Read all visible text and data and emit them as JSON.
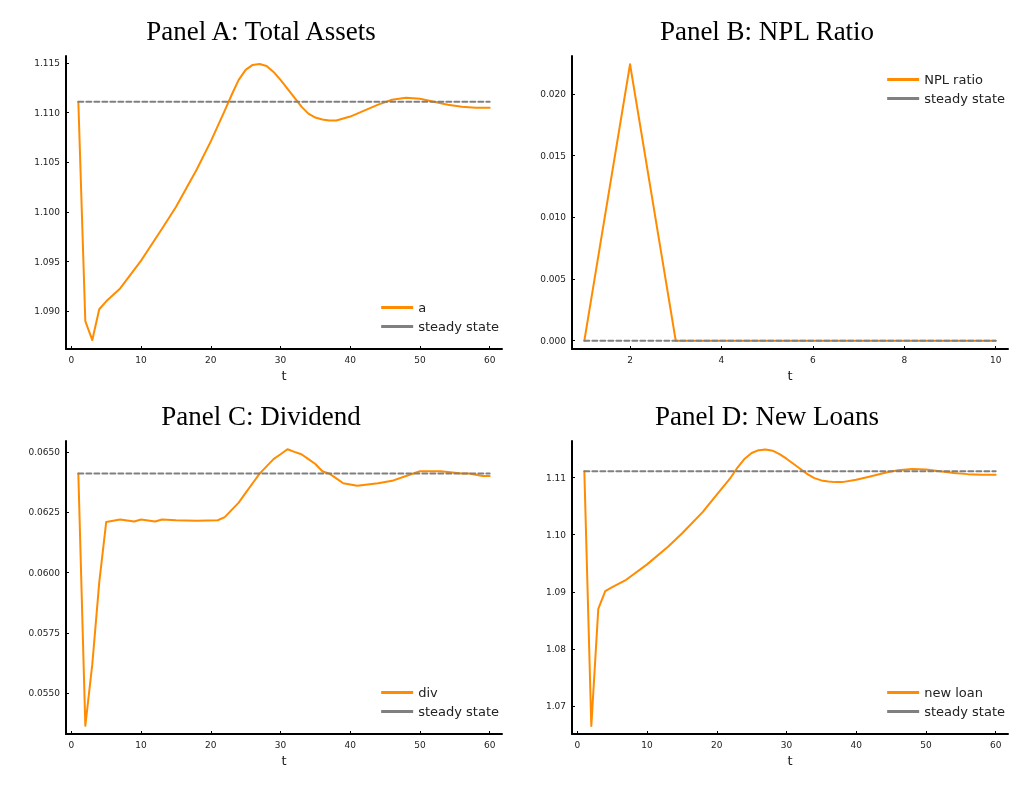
{
  "chart_data": [
    {
      "type": "line",
      "title": "Panel A: Total Assets",
      "xlabel": "t",
      "xlim": [
        -0.77,
        61.77
      ],
      "xticks": [
        0,
        10,
        20,
        30,
        40,
        50,
        60
      ],
      "ylim": [
        1.0862,
        1.1157
      ],
      "yticks": [
        {
          "value": 1.09,
          "label": "1.090"
        },
        1.095,
        {
          "value": 1.1,
          "label": "1.100"
        },
        1.105,
        {
          "value": 1.11,
          "label": "1.110"
        },
        1.115
      ],
      "grid": false,
      "legend": "bottom right",
      "marker": "none",
      "series": [
        {
          "name": "a",
          "color": "#ff8c00",
          "line_style": "solid",
          "x": [
            1,
            2,
            3,
            4,
            5,
            7,
            10,
            13,
            15,
            18,
            20,
            22,
            23,
            24,
            25,
            26,
            27,
            28,
            29,
            30,
            32,
            33,
            34,
            35,
            36,
            37,
            38,
            40,
            42,
            44,
            46,
            48,
            50,
            52,
            54,
            56,
            58,
            60
          ],
          "values": [
            1.1111,
            1.089,
            1.0871,
            1.0902,
            1.091,
            1.0923,
            1.0951,
            1.0983,
            1.1005,
            1.1043,
            1.1071,
            1.1102,
            1.1118,
            1.1133,
            1.1143,
            1.1148,
            1.1149,
            1.1147,
            1.1141,
            1.1133,
            1.1115,
            1.1106,
            1.1099,
            1.1095,
            1.1093,
            1.1092,
            1.1092,
            1.1096,
            1.1102,
            1.1108,
            1.1113,
            1.1115,
            1.1114,
            1.1111,
            1.1108,
            1.1106,
            1.1105,
            1.1105
          ]
        },
        {
          "name": "steady state",
          "color": "#808080",
          "line_style": "dashed",
          "x": [
            1,
            60
          ],
          "values": [
            1.1111,
            1.1111
          ]
        }
      ]
    },
    {
      "type": "line",
      "title": "Panel B: NPL Ratio",
      "xlabel": "t",
      "xlim": [
        0.73,
        10.27
      ],
      "xticks": [
        2,
        4,
        6,
        8,
        10
      ],
      "ylim": [
        -0.00067,
        0.02307
      ],
      "yticks": [
        {
          "value": 0,
          "label": "0.000"
        },
        0.005,
        {
          "value": 0.01,
          "label": "0.010"
        },
        0.015,
        {
          "value": 0.02,
          "label": "0.020"
        }
      ],
      "grid": false,
      "legend": "top right",
      "marker": "none",
      "series": [
        {
          "name": "NPL ratio",
          "color": "#ff8c00",
          "line_style": "solid",
          "x": [
            1,
            2,
            3,
            4,
            5,
            6,
            7,
            8,
            9,
            10
          ],
          "values": [
            0,
            0.0224,
            0,
            0,
            0,
            0,
            0,
            0,
            0,
            0
          ]
        },
        {
          "name": "steady state",
          "color": "#808080",
          "line_style": "dashed",
          "x": [
            1,
            10
          ],
          "values": [
            0,
            0
          ]
        }
      ]
    },
    {
      "type": "line",
      "title": "Panel C: Dividend",
      "xlabel": "t",
      "xlim": [
        -0.77,
        61.77
      ],
      "xticks": [
        0,
        10,
        20,
        30,
        40,
        50,
        60
      ],
      "ylim": [
        0.05332,
        0.06545
      ],
      "yticks": [
        {
          "value": 0.055,
          "label": "0.0550"
        },
        0.0575,
        {
          "value": 0.06,
          "label": "0.0600"
        },
        0.0625,
        {
          "value": 0.065,
          "label": "0.0650"
        }
      ],
      "grid": false,
      "legend": "bottom right",
      "marker": "none",
      "series": [
        {
          "name": "div",
          "color": "#ff8c00",
          "line_style": "solid",
          "x": [
            1,
            2,
            3,
            4,
            5,
            7,
            9,
            10,
            12,
            13,
            15,
            18,
            21,
            22,
            23,
            24,
            25,
            26,
            27,
            28,
            29,
            30,
            31,
            32,
            33,
            34,
            35,
            36,
            37,
            38,
            39,
            41,
            44,
            46,
            48,
            50,
            53,
            56,
            57,
            59,
            60
          ],
          "values": [
            0.0641,
            0.05366,
            0.0562,
            0.0596,
            0.0621,
            0.0622,
            0.06212,
            0.0622,
            0.06212,
            0.0622,
            0.06217,
            0.06215,
            0.06217,
            0.0623,
            0.0626,
            0.0629,
            0.0633,
            0.0637,
            0.0641,
            0.0644,
            0.0647,
            0.0649,
            0.06511,
            0.065,
            0.0649,
            0.0647,
            0.0645,
            0.0642,
            0.0641,
            0.0639,
            0.0637,
            0.0636,
            0.0637,
            0.0638,
            0.064,
            0.0642,
            0.0642,
            0.0641,
            0.0641,
            0.064,
            0.064
          ]
        },
        {
          "name": "steady state",
          "color": "#808080",
          "line_style": "dashed",
          "x": [
            1,
            60
          ],
          "values": [
            0.0641,
            0.0641
          ]
        }
      ]
    },
    {
      "type": "line",
      "title": "Panel D: New Loans",
      "xlabel": "t",
      "xlim": [
        -0.77,
        61.77
      ],
      "xticks": [
        0,
        10,
        20,
        30,
        40,
        50,
        60
      ],
      "ylim": [
        1.0651,
        1.1164
      ],
      "yticks": [
        1.07,
        1.08,
        1.09,
        {
          "value": 1.1,
          "label": "1.10"
        },
        1.11
      ],
      "grid": false,
      "legend": "bottom right",
      "marker": "none",
      "series": [
        {
          "name": "new loan",
          "color": "#ff8c00",
          "line_style": "solid",
          "x": [
            1,
            2,
            3,
            4,
            5,
            7,
            10,
            13,
            15,
            18,
            20,
            22,
            23,
            24,
            25,
            26,
            27,
            28,
            29,
            30,
            32,
            33,
            34,
            35,
            36,
            37,
            38,
            40,
            42,
            44,
            46,
            48,
            50,
            52,
            54,
            56,
            58,
            60
          ],
          "values": [
            1.1111,
            1.0665,
            1.087,
            1.0901,
            1.0908,
            1.0921,
            1.0948,
            1.0979,
            1.1002,
            1.104,
            1.107,
            1.11,
            1.1118,
            1.1133,
            1.1143,
            1.1148,
            1.1149,
            1.1147,
            1.1141,
            1.1133,
            1.1115,
            1.1106,
            1.1099,
            1.1095,
            1.1093,
            1.1092,
            1.1092,
            1.1096,
            1.1102,
            1.1108,
            1.1113,
            1.1115,
            1.1114,
            1.1111,
            1.1108,
            1.1106,
            1.1105,
            1.1105
          ]
        },
        {
          "name": "steady state",
          "color": "#808080",
          "line_style": "dashed",
          "x": [
            1,
            60
          ],
          "values": [
            1.1111,
            1.1111
          ]
        }
      ]
    }
  ]
}
